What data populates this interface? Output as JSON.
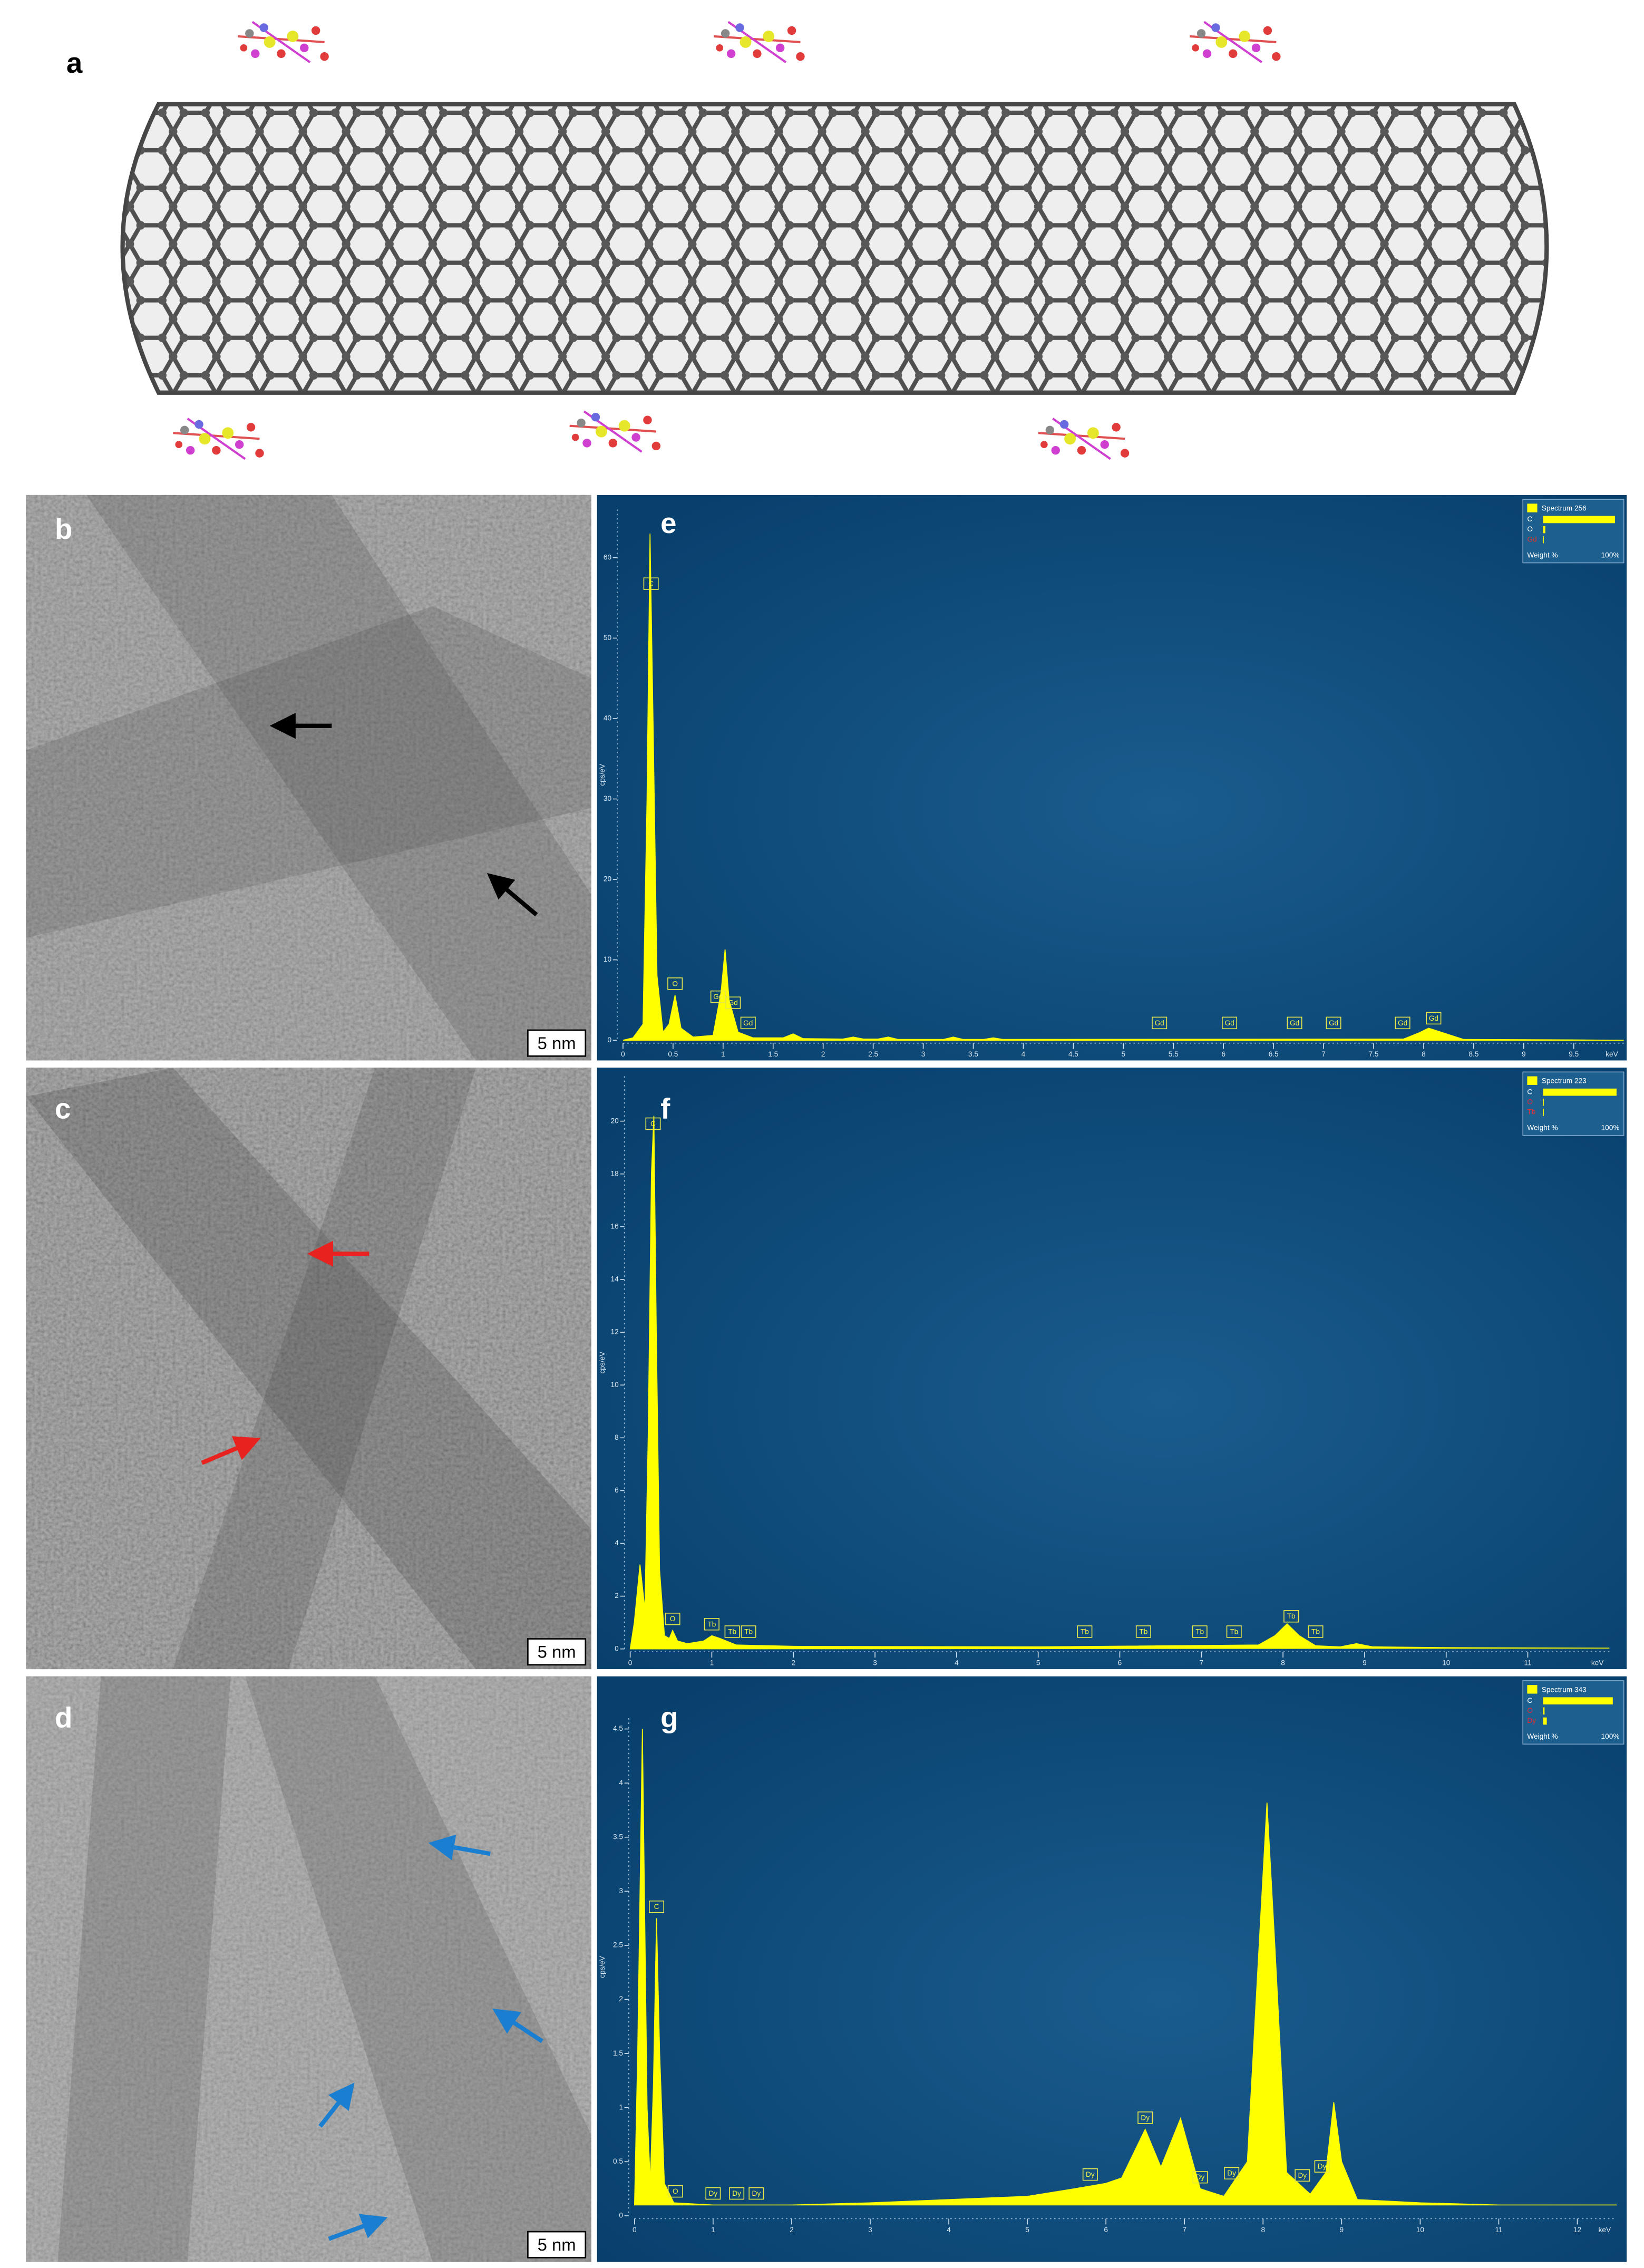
{
  "figure": {
    "panel_labels": [
      "a",
      "b",
      "c",
      "d",
      "e",
      "f",
      "g"
    ],
    "scale_bars": [
      "5 nm",
      "5 nm",
      "5 nm"
    ]
  },
  "chart_data": [
    {
      "type": "area",
      "color": "#ffff00",
      "x": [
        0,
        0.1,
        0.2,
        0.24,
        0.27,
        0.3,
        0.34,
        0.4,
        0.46,
        0.52,
        0.58,
        0.7,
        0.9,
        0.98,
        1.02,
        1.06,
        1.15,
        1.3,
        1.6,
        1.7,
        1.8,
        2.2,
        2.3,
        2.4,
        2.55,
        2.65,
        2.75,
        3.2,
        3.3,
        3.4,
        3.6,
        3.7,
        3.8,
        7.8,
        7.95,
        8.05,
        8.2,
        8.4,
        9.5,
        10
      ],
      "values": [
        0,
        0.3,
        2,
        30,
        63,
        40,
        8,
        1,
        2,
        5.6,
        1.5,
        0.4,
        0.6,
        6,
        11.3,
        5,
        1,
        0.3,
        0.3,
        0.8,
        0.2,
        0.15,
        0.4,
        0.15,
        0.15,
        0.4,
        0.1,
        0.1,
        0.4,
        0.1,
        0.1,
        0.3,
        0.1,
        0.15,
        0.9,
        1.5,
        0.9,
        0.1,
        0.05,
        0
      ],
      "xlim": [
        0,
        10
      ],
      "ylim": [
        0,
        66
      ],
      "xticks": [
        0,
        0.5,
        1,
        1.5,
        2,
        2.5,
        3,
        3.5,
        4,
        4.5,
        5,
        5.5,
        6,
        6.5,
        7,
        7.5,
        8,
        8.5,
        9,
        9.5
      ],
      "yticks": [
        0,
        10,
        20,
        30,
        40,
        50,
        60
      ],
      "x_unit": "keV",
      "y_label": "cps/eV",
      "peak_labels": [
        {
          "text": "C",
          "x": 0.28
        },
        {
          "text": "O",
          "x": 0.52
        },
        {
          "text": "Gd",
          "x": 0.95
        },
        {
          "text": "Gd",
          "x": 1.1
        },
        {
          "text": "Gd",
          "x": 1.25
        },
        {
          "text": "Gd",
          "x": 5.36
        },
        {
          "text": "Gd",
          "x": 6.06
        },
        {
          "text": "Gd",
          "x": 6.71
        },
        {
          "text": "Gd",
          "x": 7.1
        },
        {
          "text": "Gd",
          "x": 7.79
        },
        {
          "text": "Gd",
          "x": 8.1
        }
      ],
      "legend": {
        "title": "Spectrum 256",
        "elements": [
          "C",
          "O",
          "Gd"
        ],
        "weights": [
          96,
          3,
          1
        ],
        "colors": [
          "#ffffff",
          "#ffffff",
          "#e03030"
        ],
        "footer": [
          "Weight %",
          "100%"
        ]
      }
    },
    {
      "type": "area",
      "color": "#ffff00",
      "x": [
        0,
        0.05,
        0.12,
        0.18,
        0.22,
        0.26,
        0.29,
        0.32,
        0.36,
        0.42,
        0.48,
        0.52,
        0.58,
        0.7,
        0.9,
        1.0,
        1.1,
        1.3,
        2,
        5,
        7.7,
        7.9,
        8.05,
        8.2,
        8.4,
        8.7,
        8.9,
        9.1,
        10,
        12
      ],
      "values": [
        0,
        1,
        3.2,
        1.5,
        8,
        18,
        20.2,
        12,
        3,
        0.5,
        0.4,
        0.7,
        0.3,
        0.2,
        0.3,
        0.5,
        0.4,
        0.15,
        0.1,
        0.08,
        0.15,
        0.5,
        0.95,
        0.5,
        0.12,
        0.08,
        0.2,
        0.08,
        0.05,
        0.03
      ],
      "xlim": [
        0,
        12
      ],
      "ylim": [
        0,
        21.7
      ],
      "xticks": [
        0,
        1,
        2,
        3,
        4,
        5,
        6,
        7,
        8,
        9,
        10,
        11
      ],
      "yticks": [
        0,
        2,
        4,
        6,
        8,
        10,
        12,
        14,
        16,
        18,
        20
      ],
      "x_unit": "keV",
      "y_label": "cps/eV",
      "peak_labels": [
        {
          "text": "C",
          "x": 0.28
        },
        {
          "text": "O",
          "x": 0.52
        },
        {
          "text": "Tb",
          "x": 1.0
        },
        {
          "text": "Tb",
          "x": 1.25
        },
        {
          "text": "Tb",
          "x": 1.45
        },
        {
          "text": "Tb",
          "x": 5.57
        },
        {
          "text": "Tb",
          "x": 6.29
        },
        {
          "text": "Tb",
          "x": 6.98
        },
        {
          "text": "Tb",
          "x": 7.4
        },
        {
          "text": "Tb",
          "x": 8.1
        },
        {
          "text": "Tb",
          "x": 8.4
        }
      ],
      "legend": {
        "title": "Spectrum 223",
        "elements": [
          "C",
          "O",
          "Tb"
        ],
        "weights": [
          98,
          1,
          1
        ],
        "colors": [
          "#ffffff",
          "#e03030",
          "#e03030"
        ],
        "footer": [
          "Weight %",
          "100%"
        ]
      }
    },
    {
      "type": "area",
      "color": "#ffff00",
      "x": [
        0,
        0.04,
        0.1,
        0.16,
        0.2,
        0.24,
        0.28,
        0.32,
        0.38,
        0.5,
        1,
        2,
        3,
        4,
        5,
        5.6,
        6.0,
        6.2,
        6.5,
        6.7,
        6.95,
        7.2,
        7.5,
        7.8,
        7.95,
        8.05,
        8.15,
        8.3,
        8.6,
        8.8,
        8.9,
        9.0,
        9.2,
        10,
        11,
        12,
        12.5
      ],
      "values": [
        0.1,
        1.5,
        4.5,
        1,
        0.3,
        1.2,
        2.75,
        1.5,
        0.3,
        0.12,
        0.1,
        0.1,
        0.12,
        0.15,
        0.18,
        0.25,
        0.3,
        0.35,
        0.8,
        0.45,
        0.9,
        0.25,
        0.18,
        0.5,
        2.5,
        3.82,
        2.5,
        0.4,
        0.2,
        0.4,
        1.05,
        0.5,
        0.15,
        0.12,
        0.1,
        0.1,
        0.1
      ],
      "xlim": [
        0,
        12.5
      ],
      "ylim": [
        0,
        4.6
      ],
      "xticks": [
        0,
        1,
        2,
        3,
        4,
        5,
        6,
        7,
        8,
        9,
        10,
        11,
        12
      ],
      "yticks": [
        0,
        0.5,
        1,
        1.5,
        2,
        2.5,
        3,
        3.5,
        4,
        4.5
      ],
      "x_unit": "keV",
      "y_label": "cps/eV",
      "peak_labels": [
        {
          "text": "C",
          "x": 0.28
        },
        {
          "text": "O",
          "x": 0.52
        },
        {
          "text": "Dy",
          "x": 1.0
        },
        {
          "text": "Dy",
          "x": 1.3
        },
        {
          "text": "Dy",
          "x": 1.55
        },
        {
          "text": "Dy",
          "x": 5.8
        },
        {
          "text": "Dy",
          "x": 6.5
        },
        {
          "text": "Dy",
          "x": 7.2
        },
        {
          "text": "Dy",
          "x": 7.6
        },
        {
          "text": "Dy",
          "x": 8.5
        },
        {
          "text": "Dy",
          "x": 8.75
        }
      ],
      "legend": {
        "title": "Spectrum 343",
        "elements": [
          "C",
          "O",
          "Dy"
        ],
        "weights": [
          93,
          2,
          5
        ],
        "colors": [
          "#ffffff",
          "#e03030",
          "#e03030"
        ],
        "footer": [
          "Weight %",
          "100%"
        ]
      }
    }
  ]
}
